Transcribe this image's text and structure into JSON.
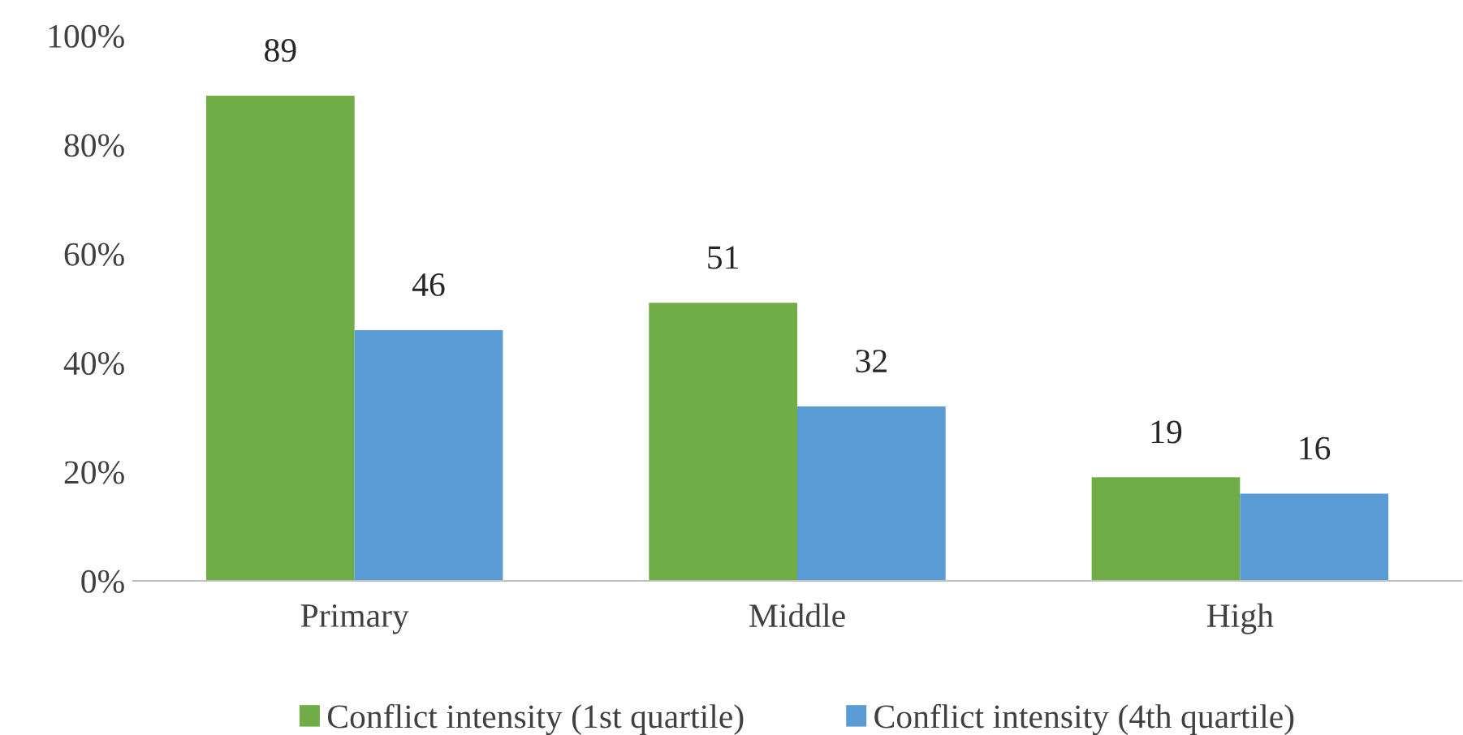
{
  "chart_data": {
    "type": "bar",
    "categories": [
      "Primary",
      "Middle",
      "High"
    ],
    "series": [
      {
        "name": "Conflict intensity (1st quartile)",
        "color": "#70ad47",
        "values": [
          89,
          51,
          19
        ]
      },
      {
        "name": "Conflict intensity (4th quartile)",
        "color": "#5b9bd5",
        "values": [
          46,
          32,
          16
        ]
      }
    ],
    "ylim": [
      0,
      100
    ],
    "yticks": [
      {
        "value": 0,
        "label": "0%"
      },
      {
        "value": 20,
        "label": "20%"
      },
      {
        "value": 40,
        "label": "40%"
      },
      {
        "value": 60,
        "label": "60%"
      },
      {
        "value": 80,
        "label": "80%"
      },
      {
        "value": 100,
        "label": "100%"
      }
    ],
    "data_labels": true,
    "legend": "bottom",
    "grid": false
  }
}
